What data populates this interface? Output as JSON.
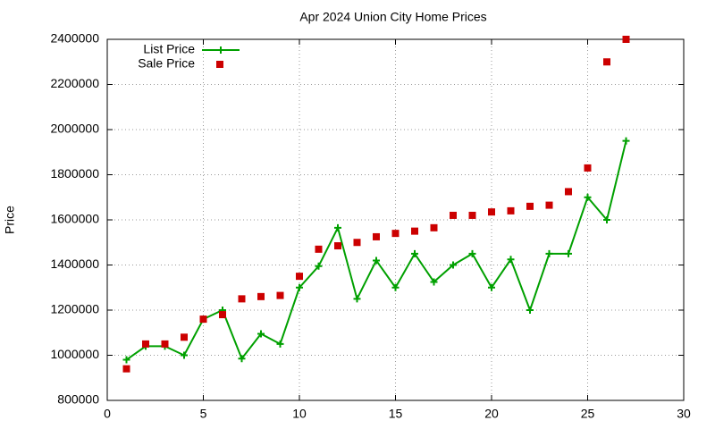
{
  "chart_data": {
    "type": "line",
    "title": "Apr 2024 Union City Home Prices",
    "ylabel": "Price",
    "x": [
      1,
      2,
      3,
      4,
      5,
      6,
      7,
      8,
      9,
      10,
      11,
      12,
      13,
      14,
      15,
      16,
      17,
      18,
      19,
      20,
      21,
      22,
      23,
      24,
      25,
      26,
      27
    ],
    "series": [
      {
        "name": "List Price",
        "color": "#00a000",
        "style": "linespoints",
        "values": [
          980000,
          1040000,
          1040000,
          1000000,
          1160000,
          1200000,
          985000,
          1095000,
          1050000,
          1300000,
          1395000,
          1565000,
          1250000,
          1420000,
          1300000,
          1450000,
          1325000,
          1400000,
          1450000,
          1300000,
          1425000,
          1200000,
          1450000,
          1450000,
          1700000,
          1600000,
          1950000
        ]
      },
      {
        "name": "Sale Price",
        "color": "#cc0000",
        "style": "points",
        "values": [
          940000,
          1050000,
          1050000,
          1080000,
          1160000,
          1180000,
          1250000,
          1260000,
          1265000,
          1350000,
          1470000,
          1485000,
          1500000,
          1525000,
          1540000,
          1550000,
          1565000,
          1620000,
          1620000,
          1635000,
          1640000,
          1660000,
          1665000,
          1725000,
          1830000,
          2300000,
          2400000
        ]
      }
    ],
    "xlim": [
      0,
      30
    ],
    "xticks": [
      0,
      5,
      10,
      15,
      20,
      25,
      30
    ],
    "ylim": [
      800000,
      2400000
    ],
    "yticks": [
      800000,
      1000000,
      1200000,
      1400000,
      1600000,
      1800000,
      2000000,
      2200000,
      2400000
    ],
    "grid": true,
    "legend": "top-left"
  }
}
